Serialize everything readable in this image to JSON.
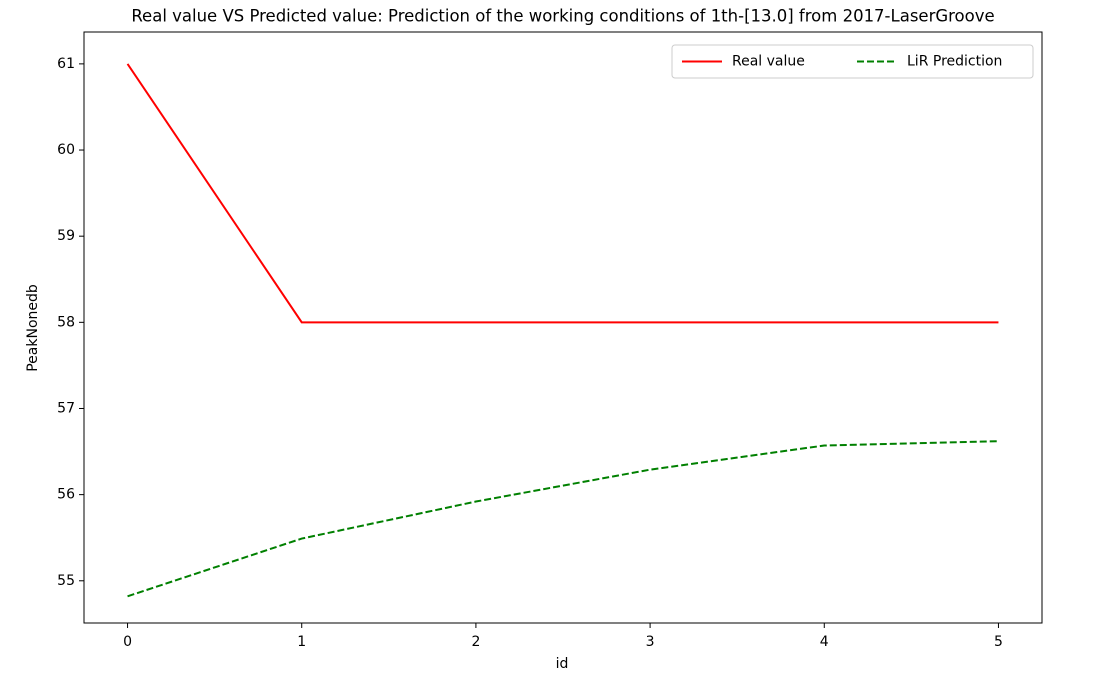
{
  "chart_data": {
    "type": "line",
    "title": "Real value VS Predicted value: Prediction of the working conditions of 1th-[13.0] from 2017-LaserGroove",
    "x_label": "id",
    "y_label": "PeakNonedb",
    "x": [
      0,
      1,
      2,
      3,
      4,
      5
    ],
    "series": [
      {
        "name": "Real value",
        "color": "#ff0000",
        "dash": "solid",
        "values": [
          61,
          58,
          58,
          58,
          58,
          58
        ]
      },
      {
        "name": "LiR Prediction",
        "color": "#008000",
        "dash": "dashed",
        "values": [
          54.82,
          55.49,
          55.92,
          56.29,
          56.57,
          56.62
        ]
      }
    ],
    "xlim": [
      -0.25,
      5.25
    ],
    "ylim": [
      54.51,
      61.37
    ],
    "xticks": [
      0,
      1,
      2,
      3,
      4,
      5
    ],
    "yticks": [
      55,
      56,
      57,
      58,
      59,
      60,
      61
    ],
    "grid": false,
    "legend_loc": "upper right"
  }
}
